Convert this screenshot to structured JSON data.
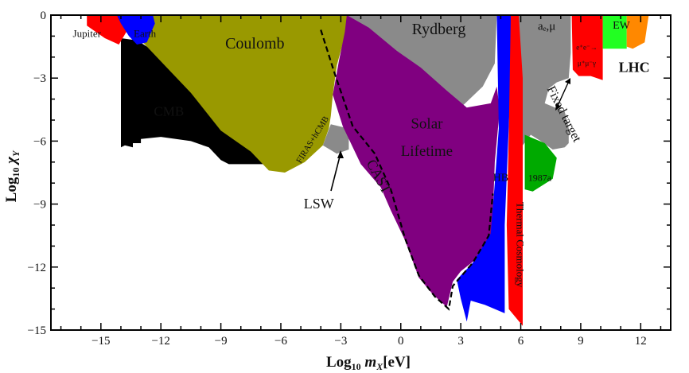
{
  "chart_data": {
    "type": "area",
    "title": "",
    "xlabel": "Log₁₀ mₓ[eV]",
    "ylabel": "Log₁₀ χᵧ",
    "xlim": [
      -17.5,
      13.5
    ],
    "ylim": [
      -15,
      0
    ],
    "x_ticks": [
      -15,
      -12,
      -9,
      -6,
      -3,
      0,
      3,
      6,
      9,
      12
    ],
    "y_ticks": [
      0,
      -3,
      -6,
      -9,
      -12,
      -15
    ],
    "x_tick_labels": [
      "−15",
      "−12",
      "−9",
      "−6",
      "−3",
      "0",
      "3",
      "6",
      "9",
      "12"
    ],
    "y_tick_labels": [
      "0",
      "−3",
      "−6",
      "−9",
      "−12",
      "−15"
    ],
    "regions": [
      {
        "name": "CMB",
        "label": "CMB",
        "color": "#000000",
        "points": [
          [
            -14,
            -1.1
          ],
          [
            -13.2,
            -1.2
          ],
          [
            -11,
            -2.5
          ],
          [
            -10,
            -2.9
          ],
          [
            -8,
            -3.4
          ],
          [
            -6,
            -4
          ],
          [
            -4,
            -4.7
          ],
          [
            -3.6,
            -5.3
          ],
          [
            -4.2,
            -5.2
          ],
          [
            -4.2,
            -6.3
          ],
          [
            -5,
            -7
          ],
          [
            -6,
            -7.1
          ],
          [
            -8.6,
            -7.1
          ],
          [
            -9,
            -6.9
          ],
          [
            -9.6,
            -6.3
          ],
          [
            -10.5,
            -6
          ],
          [
            -12,
            -5.8
          ],
          [
            -13,
            -5.9
          ],
          [
            -13,
            -6.1
          ],
          [
            -13.4,
            -6.1
          ],
          [
            -13.4,
            -6.3
          ],
          [
            -13.8,
            -6.2
          ],
          [
            -14,
            -6.3
          ]
        ]
      },
      {
        "name": "Coulomb",
        "label": "Coulomb",
        "color": "#999900",
        "points": [
          [
            -13.6,
            0
          ],
          [
            -2.6,
            0
          ],
          [
            -2.8,
            -1
          ],
          [
            -3.2,
            -2.4
          ],
          [
            -3.4,
            -3.8
          ],
          [
            -3.5,
            -4.8
          ],
          [
            -3.6,
            -5.4
          ],
          [
            -3.9,
            -6.2
          ],
          [
            -4.8,
            -7
          ],
          [
            -5.8,
            -7.5
          ],
          [
            -6.6,
            -7.4
          ],
          [
            -7.5,
            -6.5
          ],
          [
            -9,
            -5.5
          ],
          [
            -10.5,
            -3.7
          ],
          [
            -12,
            -2.2
          ],
          [
            -13.1,
            -1.1
          ],
          [
            -13.4,
            -0.4
          ]
        ]
      },
      {
        "name": "Rydberg",
        "label": "Rydberg",
        "color": "#8a8a8a",
        "points": [
          [
            -2.7,
            0
          ],
          [
            4.8,
            0
          ],
          [
            4.7,
            -2.3
          ],
          [
            4.1,
            -3.4
          ],
          [
            3,
            -4.4
          ],
          [
            2,
            -4.3
          ],
          [
            0.5,
            -3.2
          ],
          [
            -1,
            -2.4
          ],
          [
            -2.4,
            -1.1
          ]
        ]
      },
      {
        "name": "LSW",
        "label": "LSW",
        "color": "#8a8a8a",
        "points": [
          [
            -3.5,
            -5.2
          ],
          [
            -2.6,
            -5.4
          ],
          [
            -2.6,
            -6.4
          ],
          [
            -3.2,
            -6.6
          ],
          [
            -3.9,
            -6.2
          ]
        ]
      },
      {
        "name": "Solar Lifetime",
        "label": "Solar\nLifetime",
        "color": "#800080",
        "points": [
          [
            -2.7,
            0
          ],
          [
            -1.6,
            -0.6
          ],
          [
            -0.2,
            -1.7
          ],
          [
            1,
            -2.5
          ],
          [
            2.3,
            -3.6
          ],
          [
            3.3,
            -4.4
          ],
          [
            4.5,
            -4.2
          ],
          [
            4.8,
            -3.4
          ],
          [
            4.95,
            -4.5
          ],
          [
            4.7,
            -7
          ],
          [
            4.6,
            -9.6
          ],
          [
            4.5,
            -10.5
          ],
          [
            3.8,
            -11.6
          ],
          [
            3,
            -12.2
          ],
          [
            2.6,
            -12.7
          ],
          [
            2.3,
            -13.9
          ],
          [
            1.6,
            -13.3
          ],
          [
            0.9,
            -12.5
          ],
          [
            0.2,
            -10.7
          ],
          [
            -0.5,
            -9.3
          ],
          [
            -1,
            -8.2
          ],
          [
            -2,
            -7.1
          ],
          [
            -2.9,
            -5.3
          ],
          [
            -3.4,
            -3.8
          ],
          [
            -3.1,
            -2.2
          ],
          [
            -2.8,
            -0.8
          ]
        ]
      },
      {
        "name": "CAST",
        "label": "CAST",
        "color": "#800080",
        "points": []
      },
      {
        "name": "HB",
        "label": "HB",
        "color": "#0000ff",
        "points": [
          [
            4.8,
            0
          ],
          [
            5.6,
            0
          ],
          [
            5.5,
            -3
          ],
          [
            5.2,
            -10
          ],
          [
            5.2,
            -14.2
          ],
          [
            4.2,
            -13.8
          ],
          [
            3.5,
            -13.6
          ],
          [
            3.3,
            -14.6
          ],
          [
            3,
            -13.5
          ],
          [
            2.8,
            -12.6
          ],
          [
            3.6,
            -11.8
          ],
          [
            4.5,
            -10.4
          ],
          [
            4.7,
            -8
          ],
          [
            4.9,
            -5.4
          ]
        ]
      },
      {
        "name": "Thermal Cosmology",
        "label": "Thermal Cosmology",
        "color": "#ff0000",
        "points": [
          [
            5.5,
            0
          ],
          [
            6.1,
            0
          ],
          [
            6.1,
            -14.8
          ],
          [
            5.4,
            -14
          ],
          [
            5.3,
            -10
          ],
          [
            5.4,
            -5.6
          ]
        ]
      },
      {
        "name": "a_e,μ / Fixed target",
        "label": "Fixed target",
        "color": "#8a8a8a",
        "points": [
          [
            5.9,
            0
          ],
          [
            8.5,
            0
          ],
          [
            8.5,
            -1.8
          ],
          [
            8.4,
            -3
          ],
          [
            7.8,
            -3.2
          ],
          [
            7.4,
            -3.5
          ],
          [
            7.2,
            -4.2
          ],
          [
            8.2,
            -4.6
          ],
          [
            8.4,
            -5.4
          ],
          [
            8.4,
            -6.1
          ],
          [
            8.2,
            -6.3
          ],
          [
            7.6,
            -6.4
          ],
          [
            7,
            -6
          ],
          [
            6.5,
            -5.7
          ],
          [
            6.1,
            -6.2
          ],
          [
            6.1,
            -3
          ]
        ]
      },
      {
        "name": "1987a",
        "label": "1987a",
        "color": "#00aa00",
        "points": [
          [
            6.2,
            -5.7
          ],
          [
            7.2,
            -6.1
          ],
          [
            7.8,
            -6.8
          ],
          [
            7.6,
            -7.8
          ],
          [
            6.6,
            -8.4
          ],
          [
            6.2,
            -8.3
          ]
        ]
      },
      {
        "name": "Jupiter",
        "label": "Jupiter",
        "color": "#ff0000",
        "points": [
          [
            -15.7,
            0
          ],
          [
            -13.6,
            0
          ],
          [
            -13.6,
            -0.6
          ],
          [
            -14.1,
            -1.4
          ],
          [
            -14.8,
            -1.1
          ],
          [
            -15.7,
            -0.5
          ]
        ]
      },
      {
        "name": "Earth",
        "label": "Earth",
        "color": "#0000ff",
        "points": [
          [
            -14.2,
            0
          ],
          [
            -12.4,
            0
          ],
          [
            -12.3,
            -0.4
          ],
          [
            -12.7,
            -1.3
          ],
          [
            -13.2,
            -1.4
          ],
          [
            -13.6,
            -1
          ],
          [
            -14,
            -0.4
          ]
        ]
      },
      {
        "name": "e+e-→μ+μ-γ",
        "label": "e⁺e⁻→μ⁺μ⁻γ",
        "color": "#ff0000",
        "points": [
          [
            8.55,
            0
          ],
          [
            10.1,
            0
          ],
          [
            10.1,
            -3.1
          ],
          [
            9.5,
            -2.9
          ],
          [
            8.9,
            -2.9
          ],
          [
            8.6,
            -2.6
          ]
        ]
      },
      {
        "name": "EW",
        "label": "EW",
        "color": "#22ff22",
        "points": [
          [
            10.1,
            0
          ],
          [
            11.3,
            0
          ],
          [
            11.3,
            -1.6
          ],
          [
            10.1,
            -1.6
          ]
        ]
      },
      {
        "name": "LHC",
        "label": "LHC",
        "color": "#ff8800",
        "points": [
          [
            11.3,
            0
          ],
          [
            12.4,
            0
          ],
          [
            12.2,
            -1.3
          ],
          [
            11.6,
            -1.6
          ],
          [
            11.3,
            -1.5
          ]
        ]
      }
    ],
    "boundary_lines": [
      {
        "name": "CAST",
        "style": "dashed",
        "color": "#000000",
        "points": [
          [
            -4,
            -0.7
          ],
          [
            -3.3,
            -2.8
          ],
          [
            -2.4,
            -5.3
          ],
          [
            -1.3,
            -6.6
          ],
          [
            -0.5,
            -8.3
          ],
          [
            0.2,
            -10.6
          ],
          [
            0.9,
            -12.4
          ],
          [
            1.7,
            -13.4
          ],
          [
            2.4,
            -14
          ],
          [
            2.6,
            -12.9
          ],
          [
            3.6,
            -11.8
          ],
          [
            4.4,
            -10.5
          ],
          [
            4.6,
            -8.5
          ]
        ]
      }
    ],
    "labels": [
      {
        "text": "Jupiter",
        "x": -15.7,
        "y": -1.05,
        "size": 13,
        "color": "#111",
        "anchor": "middle"
      },
      {
        "text": "Earth",
        "x": -12.8,
        "y": -1.05,
        "size": 13,
        "color": "#fff",
        "anchor": "middle"
      },
      {
        "text": "Coulomb",
        "x": -7.3,
        "y": -1.6,
        "size": 20,
        "color": "#111",
        "anchor": "middle"
      },
      {
        "text": "CMB",
        "x": -11.6,
        "y": -4.8,
        "size": 17,
        "color": "#fff",
        "anchor": "middle"
      },
      {
        "text": "FIRAS+hCMB",
        "x": -4.3,
        "y": -6,
        "size": 11,
        "color": "#111",
        "anchor": "middle",
        "rotate": -58
      },
      {
        "text": "Rydberg",
        "x": 1.9,
        "y": -0.9,
        "size": 20,
        "color": "#111",
        "anchor": "middle"
      },
      {
        "text": "aₑ,μ",
        "x": 7.3,
        "y": -0.7,
        "size": 15,
        "color": "#111",
        "anchor": "middle"
      },
      {
        "text": "EW",
        "x": 10.6,
        "y": -0.65,
        "size": 14,
        "color": "#111",
        "anchor": "start"
      },
      {
        "text": "LHC",
        "x": 10.9,
        "y": -2.7,
        "size": 18,
        "color": "#111",
        "anchor": "start",
        "bold": true
      },
      {
        "text": "Solar",
        "x": 1.3,
        "y": -5.4,
        "size": 19,
        "color": "#111",
        "anchor": "middle"
      },
      {
        "text": "Lifetime",
        "x": 1.3,
        "y": -6.7,
        "size": 19,
        "color": "#111",
        "anchor": "middle"
      },
      {
        "text": "CAST",
        "x": -1.3,
        "y": -7.8,
        "size": 18,
        "color": "#111",
        "anchor": "middle",
        "rotate": 62
      },
      {
        "text": "LSW",
        "x": -4.1,
        "y": -9.2,
        "size": 18,
        "color": "#111",
        "anchor": "middle"
      },
      {
        "text": "HB",
        "x": 5,
        "y": -7.9,
        "size": 14,
        "color": "#fff",
        "anchor": "middle"
      },
      {
        "text": "Thermal Cosmology",
        "x": 5.8,
        "y": -8.9,
        "size": 13,
        "color": "#111",
        "anchor": "start",
        "rotate": 90
      },
      {
        "text": "Fixed target",
        "x": 7.3,
        "y": -3.5,
        "size": 16,
        "color": "#111",
        "anchor": "start",
        "rotate": 63
      },
      {
        "text": "1987a",
        "x": 6.95,
        "y": -7.9,
        "size": 12,
        "color": "#111",
        "anchor": "middle"
      },
      {
        "text": "e⁺e⁻→",
        "x": 9.3,
        "y": -1.65,
        "size": 9,
        "color": "#111",
        "anchor": "middle"
      },
      {
        "text": "μ⁺μ⁻γ",
        "x": 9.3,
        "y": -2.4,
        "size": 9,
        "color": "#111",
        "anchor": "middle"
      }
    ],
    "grid": false,
    "legend": "none"
  }
}
